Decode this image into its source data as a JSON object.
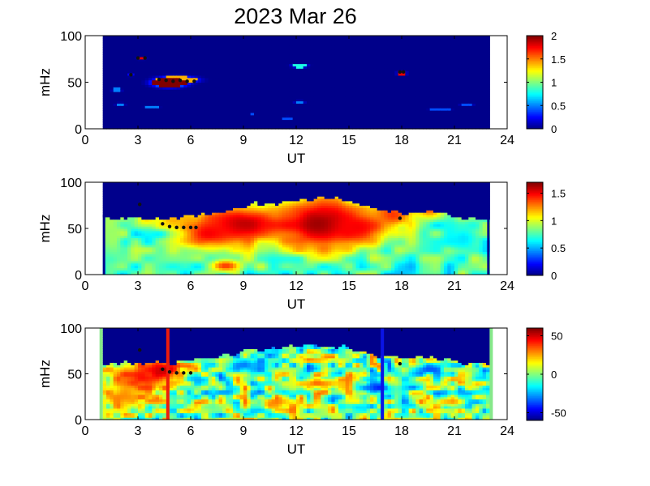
{
  "title": "2023 Mar 26",
  "chart_data": [
    {
      "type": "heatmap",
      "panel": "top",
      "xlabel": "UT",
      "ylabel": "mHz",
      "xlim": [
        0,
        24
      ],
      "ylim": [
        0,
        100
      ],
      "xticks": [
        0,
        3,
        6,
        9,
        12,
        15,
        18,
        21,
        24
      ],
      "yticks": [
        0,
        50,
        100
      ],
      "data_x_range": [
        1,
        23
      ],
      "colorbar": {
        "range": [
          0,
          2
        ],
        "ticks": [
          0,
          0.5,
          1,
          1.5,
          2
        ]
      },
      "features": [
        {
          "type": "blob",
          "x": 4.8,
          "y": 50,
          "rx": 1.0,
          "ry": 5,
          "v": 2.0
        },
        {
          "type": "blob",
          "x": 5.2,
          "y": 53,
          "rx": 1.2,
          "ry": 4,
          "v": 1.4
        },
        {
          "type": "blob",
          "x": 3.2,
          "y": 76,
          "rx": 0.2,
          "ry": 1.5,
          "v": 1.8
        },
        {
          "type": "blob",
          "x": 2.6,
          "y": 58,
          "rx": 0.1,
          "ry": 1.5,
          "v": 1.6
        },
        {
          "type": "blob",
          "x": 12.2,
          "y": 68,
          "rx": 0.5,
          "ry": 2,
          "v": 0.8
        },
        {
          "type": "blob",
          "x": 18.0,
          "y": 60,
          "rx": 0.25,
          "ry": 2,
          "v": 1.8
        },
        {
          "type": "blob",
          "x": 12.2,
          "y": 29,
          "rx": 0.3,
          "ry": 2,
          "v": 0.5
        },
        {
          "type": "blob",
          "x": 11.5,
          "y": 12,
          "rx": 0.3,
          "ry": 1.5,
          "v": 0.4
        },
        {
          "type": "blob",
          "x": 1.8,
          "y": 42,
          "rx": 0.3,
          "ry": 2,
          "v": 0.5
        },
        {
          "type": "blob",
          "x": 2.0,
          "y": 27,
          "rx": 0.3,
          "ry": 1.5,
          "v": 0.5
        },
        {
          "type": "blob",
          "x": 3.8,
          "y": 24,
          "rx": 0.4,
          "ry": 1.5,
          "v": 0.5
        },
        {
          "type": "blob",
          "x": 20.2,
          "y": 21,
          "rx": 0.6,
          "ry": 1.5,
          "v": 0.4
        },
        {
          "type": "blob",
          "x": 21.7,
          "y": 26,
          "rx": 0.4,
          "ry": 1.5,
          "v": 0.4
        },
        {
          "type": "blob",
          "x": 9.5,
          "y": 16,
          "rx": 0.15,
          "ry": 1.5,
          "v": 0.4
        }
      ],
      "markers": [
        {
          "x": 3.0,
          "y": 76
        },
        {
          "x": 3.4,
          "y": 76
        },
        {
          "x": 2.6,
          "y": 58
        },
        {
          "x": 4.2,
          "y": 53
        },
        {
          "x": 4.6,
          "y": 52
        },
        {
          "x": 5.0,
          "y": 51
        },
        {
          "x": 5.4,
          "y": 52
        },
        {
          "x": 5.8,
          "y": 51
        },
        {
          "x": 6.2,
          "y": 51
        },
        {
          "x": 17.9,
          "y": 61
        },
        {
          "x": 18.1,
          "y": 61
        }
      ]
    },
    {
      "type": "heatmap",
      "panel": "middle",
      "xlabel": "UT",
      "ylabel": "mHz",
      "xlim": [
        0,
        24
      ],
      "ylim": [
        0,
        100
      ],
      "xticks": [
        0,
        3,
        6,
        9,
        12,
        15,
        18,
        21,
        24
      ],
      "yticks": [
        0,
        50,
        100
      ],
      "data_x_range": [
        1,
        23
      ],
      "colorbar": {
        "range": [
          0,
          1.7
        ],
        "ticks": [
          0,
          0.5,
          1,
          1.5
        ]
      },
      "features": [
        {
          "type": "blob",
          "x": 13.5,
          "y": 55,
          "rx": 2.6,
          "ry": 28,
          "v": 1.7
        },
        {
          "type": "blob",
          "x": 9.0,
          "y": 55,
          "rx": 2.8,
          "ry": 22,
          "v": 1.6
        },
        {
          "type": "blob",
          "x": 15.5,
          "y": 52,
          "rx": 1.8,
          "ry": 18,
          "v": 1.5
        },
        {
          "type": "blob",
          "x": 7.0,
          "y": 45,
          "rx": 1.5,
          "ry": 15,
          "v": 1.5
        },
        {
          "type": "blob",
          "x": 17.5,
          "y": 65,
          "rx": 1.2,
          "ry": 14,
          "v": 1.4
        },
        {
          "type": "blob",
          "x": 19.6,
          "y": 72,
          "rx": 0.8,
          "ry": 10,
          "v": 1.4
        },
        {
          "type": "blob",
          "x": 8.0,
          "y": 10,
          "rx": 0.8,
          "ry": 6,
          "v": 1.4
        },
        {
          "type": "blob",
          "x": 5.0,
          "y": 60,
          "rx": 0.8,
          "ry": 8,
          "v": 1.2
        },
        {
          "type": "blob",
          "x": 3.5,
          "y": 60,
          "rx": 0.8,
          "ry": 10,
          "v": 1.1
        },
        {
          "type": "blob",
          "x": 21.5,
          "y": 40,
          "rx": 1.0,
          "ry": 15,
          "v": 0.6
        },
        {
          "type": "blob",
          "x": 1.6,
          "y": 40,
          "rx": 0.6,
          "ry": 20,
          "v": 0.9
        }
      ],
      "markers": [
        {
          "x": 3.1,
          "y": 76
        },
        {
          "x": 4.4,
          "y": 55
        },
        {
          "x": 4.8,
          "y": 52
        },
        {
          "x": 5.2,
          "y": 51
        },
        {
          "x": 5.6,
          "y": 51
        },
        {
          "x": 6.0,
          "y": 51
        },
        {
          "x": 6.3,
          "y": 51
        },
        {
          "x": 17.9,
          "y": 61
        }
      ]
    },
    {
      "type": "heatmap",
      "panel": "bottom",
      "xlabel": "UT",
      "ylabel": "mHz",
      "xlim": [
        0,
        24
      ],
      "ylim": [
        0,
        100
      ],
      "xticks": [
        0,
        3,
        6,
        9,
        12,
        15,
        18,
        21,
        24
      ],
      "yticks": [
        0,
        50,
        100
      ],
      "data_x_range": [
        1,
        23
      ],
      "colorbar": {
        "range": [
          -60,
          60
        ],
        "ticks": [
          -50,
          0,
          50
        ]
      },
      "features": [
        {
          "type": "blob",
          "x": 3.0,
          "y": 45,
          "rx": 1.6,
          "ry": 22,
          "v": 45
        },
        {
          "type": "blob",
          "x": 4.5,
          "y": 55,
          "rx": 1.2,
          "ry": 12,
          "v": 55
        },
        {
          "type": "blob",
          "x": 2.2,
          "y": 25,
          "rx": 1.0,
          "ry": 15,
          "v": 30
        },
        {
          "type": "blob",
          "x": 9.5,
          "y": 60,
          "rx": 1.5,
          "ry": 8,
          "v": -30
        },
        {
          "type": "blob",
          "x": 13.5,
          "y": 40,
          "rx": 1.2,
          "ry": 6,
          "v": 35
        },
        {
          "type": "blob",
          "x": 16.5,
          "y": 35,
          "rx": 0.8,
          "ry": 8,
          "v": -45
        },
        {
          "type": "blob",
          "x": 19.5,
          "y": 55,
          "rx": 1.0,
          "ry": 6,
          "v": -35
        },
        {
          "type": "blob",
          "x": 11.0,
          "y": 20,
          "rx": 1.2,
          "ry": 5,
          "v": 30
        },
        {
          "type": "blob",
          "x": 20.5,
          "y": 20,
          "rx": 1.0,
          "ry": 5,
          "v": 25
        }
      ],
      "vlines": [
        {
          "x": 4.7,
          "color": "#ee1c0c"
        },
        {
          "x": 16.9,
          "color": "#0a14e6"
        }
      ],
      "markers": [
        {
          "x": 3.1,
          "y": 76
        },
        {
          "x": 4.4,
          "y": 55
        },
        {
          "x": 4.8,
          "y": 52
        },
        {
          "x": 5.2,
          "y": 51
        },
        {
          "x": 5.6,
          "y": 51
        },
        {
          "x": 6.0,
          "y": 51
        },
        {
          "x": 17.9,
          "y": 61
        }
      ]
    }
  ]
}
